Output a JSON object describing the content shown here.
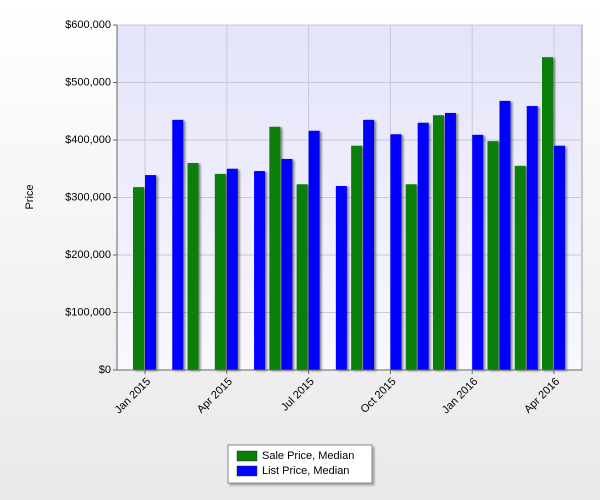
{
  "chart_data": {
    "type": "bar",
    "y_label": "Price",
    "categories": [
      "Jan 2015",
      null,
      null,
      "Apr 2015",
      null,
      null,
      "Jul 2015",
      null,
      null,
      "Oct 2015",
      null,
      null,
      "Jan 2016",
      null,
      null,
      "Apr 2016"
    ],
    "series": [
      {
        "name": "Sale Price, Median",
        "color": "#0a800a",
        "values": [
          318000,
          null,
          360000,
          341000,
          null,
          423000,
          323000,
          null,
          390000,
          null,
          323000,
          443000,
          null,
          398000,
          355000,
          544000
        ]
      },
      {
        "name": "List Price, Median",
        "color": "#0000ff",
        "values": [
          339000,
          435000,
          null,
          350000,
          346000,
          367000,
          416000,
          320000,
          435000,
          410000,
          430000,
          447000,
          409000,
          468000,
          459000,
          390000
        ]
      }
    ],
    "ylim": [
      0,
      600000
    ],
    "yticks": [
      {
        "value": 0,
        "label": "$0"
      },
      {
        "value": 100000,
        "label": "$100,000"
      },
      {
        "value": 200000,
        "label": "$200,000"
      },
      {
        "value": 300000,
        "label": "$300,000"
      },
      {
        "value": 400000,
        "label": "$400,000"
      },
      {
        "value": 500000,
        "label": "$500,000"
      },
      {
        "value": 600000,
        "label": "$600,000"
      }
    ],
    "grid": true,
    "legend": "bottom"
  }
}
